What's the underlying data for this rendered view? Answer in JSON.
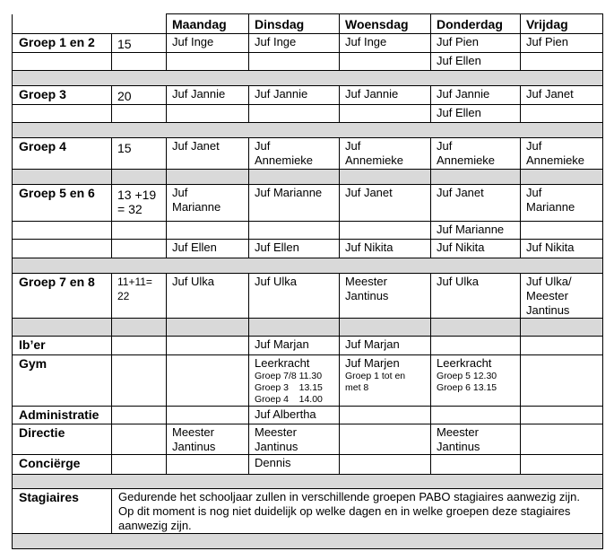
{
  "header": [
    "",
    "Maandag",
    "Dinsdag",
    "Woensdag",
    "Donderdag",
    "Vrijdag"
  ],
  "rows": [
    {
      "type": "data",
      "cells": [
        {
          "t": "Groep 1 en 2",
          "c": "lbl"
        },
        {
          "t": "15",
          "c": "num"
        },
        {
          "t": "Juf Inge"
        },
        {
          "t": "Juf Inge"
        },
        {
          "t": "Juf Inge"
        },
        {
          "t": "Juf Pien"
        },
        {
          "t": "Juf Pien"
        }
      ]
    },
    {
      "type": "data",
      "cells": [
        {
          "t": ""
        },
        {
          "t": ""
        },
        {
          "t": ""
        },
        {
          "t": ""
        },
        {
          "t": ""
        },
        {
          "t": "Juf Ellen"
        },
        {
          "t": ""
        }
      ]
    },
    {
      "type": "gray-full"
    },
    {
      "type": "data",
      "cells": [
        {
          "t": "Groep 3",
          "c": "lbl"
        },
        {
          "t": "20",
          "c": "num"
        },
        {
          "t": "Juf Jannie"
        },
        {
          "t": "Juf Jannie"
        },
        {
          "t": "Juf Jannie"
        },
        {
          "t": "Juf Jannie"
        },
        {
          "t": "Juf Janet"
        }
      ]
    },
    {
      "type": "data",
      "cells": [
        {
          "t": ""
        },
        {
          "t": ""
        },
        {
          "t": ""
        },
        {
          "t": ""
        },
        {
          "t": ""
        },
        {
          "t": "Juf Ellen"
        },
        {
          "t": ""
        }
      ]
    },
    {
      "type": "gray-full"
    },
    {
      "type": "data",
      "cells": [
        {
          "t": "Groep 4",
          "c": "lbl"
        },
        {
          "t": "15",
          "c": "num"
        },
        {
          "t": "Juf Janet"
        },
        {
          "t": "Juf\nAnnemieke"
        },
        {
          "t": "Juf\nAnnemieke"
        },
        {
          "t": "Juf\nAnnemieke"
        },
        {
          "t": "Juf\nAnnemieke"
        }
      ]
    },
    {
      "type": "gray-cells"
    },
    {
      "type": "data",
      "cells": [
        {
          "t": "Groep 5 en 6",
          "c": "lbl"
        },
        {
          "t": "13 +19\n= 32",
          "c": "num"
        },
        {
          "t": "Juf\nMarianne"
        },
        {
          "t": "Juf Marianne"
        },
        {
          "t": "Juf Janet"
        },
        {
          "t": "Juf Janet"
        },
        {
          "t": "Juf\nMarianne"
        }
      ]
    },
    {
      "type": "data",
      "cells": [
        {
          "t": ""
        },
        {
          "t": ""
        },
        {
          "t": ""
        },
        {
          "t": ""
        },
        {
          "t": ""
        },
        {
          "t": "Juf Marianne"
        },
        {
          "t": ""
        }
      ]
    },
    {
      "type": "data",
      "cells": [
        {
          "t": ""
        },
        {
          "t": ""
        },
        {
          "t": "Juf Ellen"
        },
        {
          "t": "Juf Ellen"
        },
        {
          "t": "Juf Nikita"
        },
        {
          "t": "Juf Nikita"
        },
        {
          "t": "Juf Nikita"
        }
      ]
    },
    {
      "type": "gray-full"
    },
    {
      "type": "data",
      "cells": [
        {
          "t": "Groep 7 en 8",
          "c": "lbl"
        },
        {
          "t": "11+11=\n22",
          "c": "small-num"
        },
        {
          "t": "Juf Ulka"
        },
        {
          "t": "Juf Ulka"
        },
        {
          "t": "Meester\nJantinus"
        },
        {
          "t": "Juf Ulka"
        },
        {
          "t": "Juf Ulka/\nMeester\nJantinus"
        }
      ]
    },
    {
      "type": "gray-cells"
    },
    {
      "type": "data",
      "cells": [
        {
          "t": "Ib’er",
          "c": "lbl"
        },
        {
          "t": ""
        },
        {
          "t": ""
        },
        {
          "t": "Juf Marjan"
        },
        {
          "t": "Juf Marjan"
        },
        {
          "t": ""
        },
        {
          "t": ""
        }
      ]
    },
    {
      "type": "data",
      "cells": [
        {
          "t": "Gym",
          "c": "lbl"
        },
        {
          "t": ""
        },
        {
          "t": ""
        },
        {
          "t": "Leerkracht",
          "sub": [
            "Groep 7/8 11.30",
            "Groep 3    13.15",
            "Groep 4    14.00"
          ]
        },
        {
          "t": "Juf Marjen",
          "sub": [
            "Groep 1 tot en",
            "met 8"
          ]
        },
        {
          "t": "Leerkracht",
          "sub": [
            "Groep 5 12.30",
            "Groep 6 13.15"
          ]
        },
        {
          "t": ""
        }
      ]
    },
    {
      "type": "data",
      "cells": [
        {
          "t": "Administratie",
          "c": "lbl"
        },
        {
          "t": ""
        },
        {
          "t": ""
        },
        {
          "t": "Juf Albertha"
        },
        {
          "t": ""
        },
        {
          "t": ""
        },
        {
          "t": ""
        }
      ]
    },
    {
      "type": "data",
      "cells": [
        {
          "t": "Directie",
          "c": "lbl"
        },
        {
          "t": ""
        },
        {
          "t": "Meester\nJantinus"
        },
        {
          "t": "Meester\nJantinus"
        },
        {
          "t": ""
        },
        {
          "t": "Meester\nJantinus"
        },
        {
          "t": ""
        }
      ]
    },
    {
      "type": "data",
      "cells": [
        {
          "t": "Conciërge",
          "c": "lbl"
        },
        {
          "t": ""
        },
        {
          "t": ""
        },
        {
          "t": "Dennis"
        },
        {
          "t": ""
        },
        {
          "t": ""
        },
        {
          "t": ""
        }
      ]
    },
    {
      "type": "gray-full"
    },
    {
      "type": "note",
      "label": "Stagiaires",
      "text": "Gedurende het schooljaar zullen in verschillende groepen PABO stagiaires aanwezig zijn. Op dit moment is nog niet duidelijk op welke dagen en in welke groepen deze stagiaires aanwezig zijn."
    },
    {
      "type": "gray-full"
    }
  ],
  "colors": {
    "gray_row": "#d9d9d9",
    "border": "#000000"
  }
}
